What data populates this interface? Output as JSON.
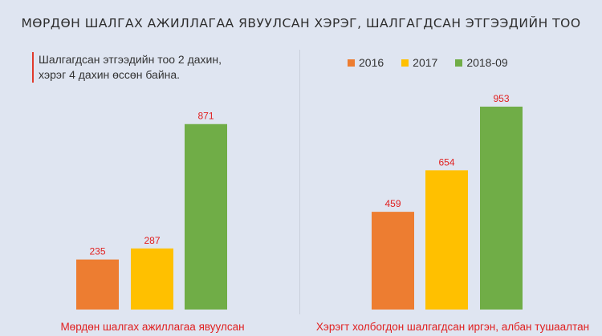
{
  "title": "МӨРДӨН ШАЛГАХ АЖИЛЛАГАА ЯВУУЛСАН ХЭРЭГ, ШАЛГАГДСАН ЭТГЭЭДИЙН ТОО",
  "note": {
    "line1": "Шалгагдсан этгээдийн тоо 2 дахин,",
    "line2": "хэрэг 4 дахин өссөн байна."
  },
  "colors": {
    "2016": "#ed7d31",
    "2017": "#ffc000",
    "2018-09": "#70ad47",
    "label_red": "#e02020"
  },
  "chart_data": [
    {
      "type": "bar",
      "categories": [
        "Мөрдөн шалгах ажиллагаа явуулсан"
      ],
      "series": [
        {
          "name": "2016",
          "values": [
            235
          ]
        },
        {
          "name": "2017",
          "values": [
            287
          ]
        },
        {
          "name": "2018-09",
          "values": [
            871
          ]
        }
      ],
      "legend": "none",
      "grid": false
    },
    {
      "type": "bar",
      "categories": [
        "Хэрэгт холбогдон шалгагдсан иргэн, албан тушаалтан"
      ],
      "series": [
        {
          "name": "2016",
          "values": [
            459
          ]
        },
        {
          "name": "2017",
          "values": [
            654
          ]
        },
        {
          "name": "2018-09",
          "values": [
            953
          ]
        }
      ],
      "legend": "top",
      "grid": false
    }
  ]
}
